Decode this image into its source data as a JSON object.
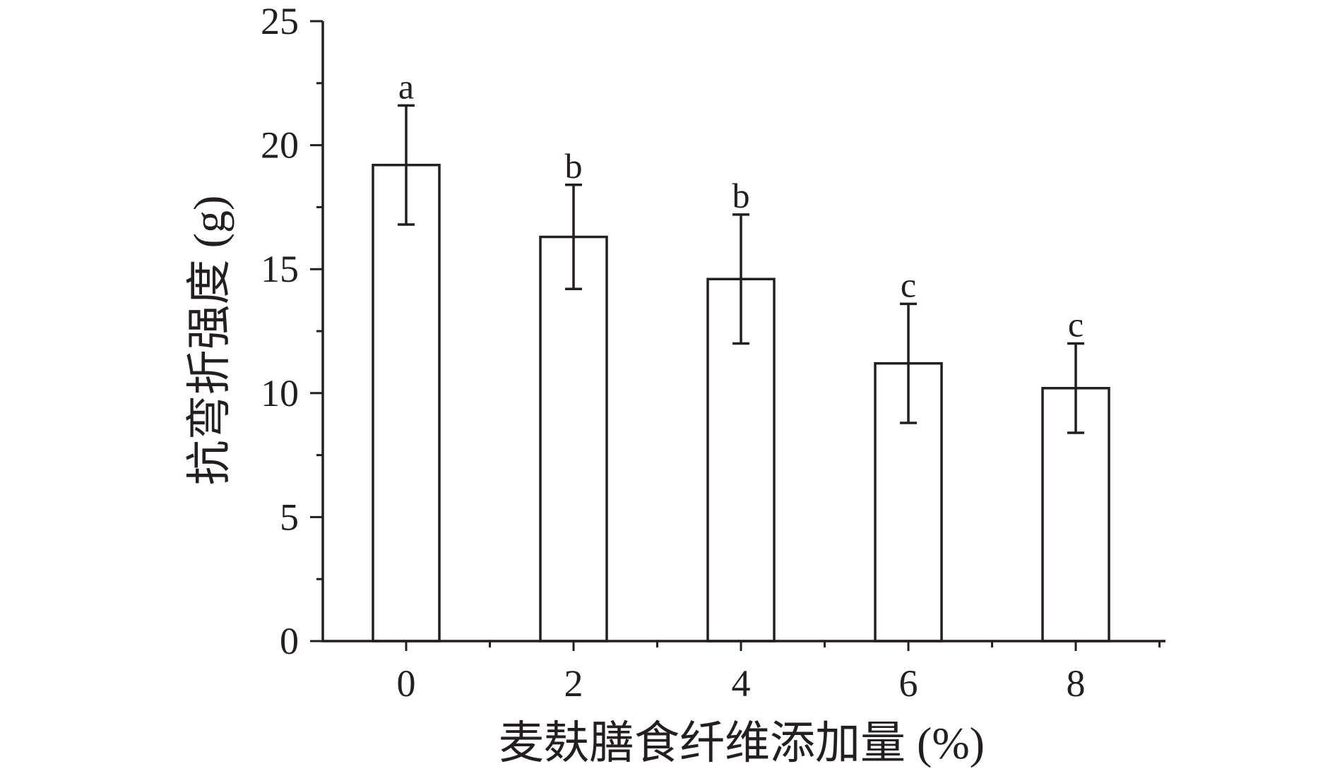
{
  "chart_data": {
    "type": "bar",
    "categories": [
      "0",
      "2",
      "4",
      "6",
      "8"
    ],
    "values": [
      19.2,
      16.3,
      14.6,
      11.2,
      10.2
    ],
    "error": [
      2.4,
      2.1,
      2.6,
      2.4,
      1.8
    ],
    "significance_labels": [
      "a",
      "b",
      "b",
      "c",
      "c"
    ],
    "xlabel": "麦麸膳食纤维添加量 (%)",
    "ylabel": "抗弯折强度 (g)",
    "ylim": [
      0,
      25
    ],
    "yticks": [
      0,
      5,
      10,
      15,
      20,
      25
    ],
    "y_minor_step": 2.5,
    "grid": false,
    "legend": "none",
    "bar_fill": "#ffffff",
    "stroke_color": "#231f20"
  }
}
